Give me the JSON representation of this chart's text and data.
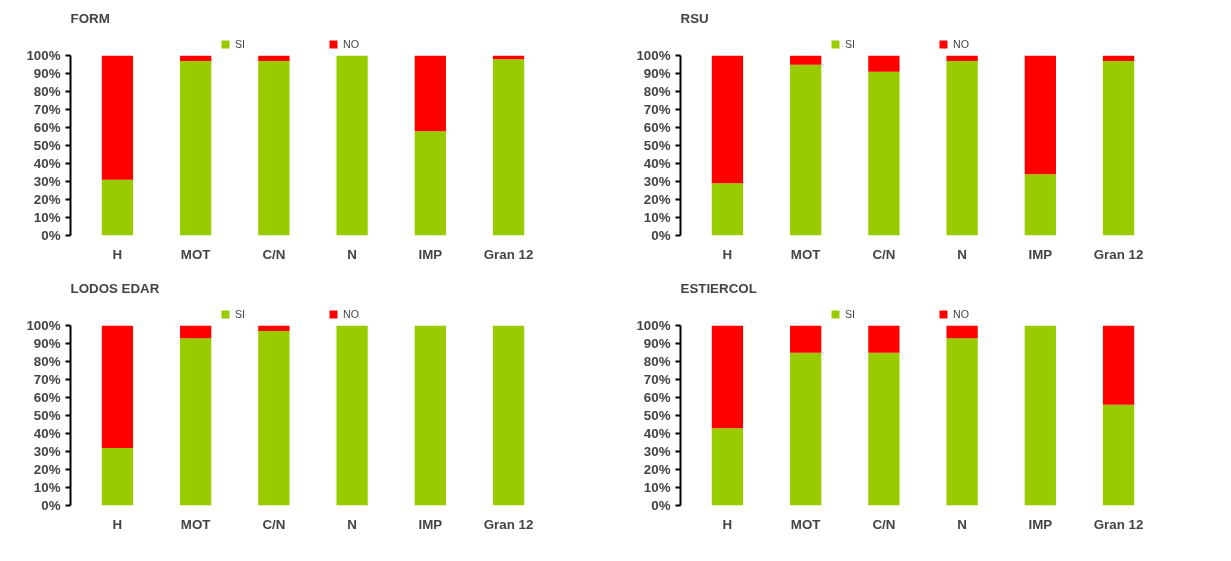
{
  "chart_data": [
    {
      "type": "bar",
      "title": "FORM",
      "categories": [
        "H",
        "MOT",
        "C/N",
        "N",
        "IMP",
        "Gran 12"
      ],
      "stacked": true,
      "legend": "top",
      "grid": false,
      "ylim": [
        0,
        100
      ],
      "yticks": [
        {
          "value": 0,
          "label": "0%"
        },
        {
          "value": 10,
          "label": "10%"
        },
        {
          "value": 20,
          "label": "20%"
        },
        {
          "value": 30,
          "label": "30%"
        },
        {
          "value": 40,
          "label": "40%"
        },
        {
          "value": 50,
          "label": "50%"
        },
        {
          "value": 60,
          "label": "60%"
        },
        {
          "value": 70,
          "label": "70%"
        },
        {
          "value": 80,
          "label": "80%"
        },
        {
          "value": 90,
          "label": "90%"
        },
        {
          "value": 100,
          "label": "100%"
        }
      ],
      "series": [
        {
          "name": "SI",
          "color": "#99cc00",
          "values": [
            31,
            97,
            97,
            100,
            58,
            98
          ]
        },
        {
          "name": "NO",
          "color": "#ff0000",
          "values": [
            69,
            3,
            3,
            0,
            42,
            2
          ]
        }
      ]
    },
    {
      "type": "bar",
      "title": "RSU",
      "categories": [
        "H",
        "MOT",
        "C/N",
        "N",
        "IMP",
        "Gran 12"
      ],
      "stacked": true,
      "legend": "top",
      "grid": false,
      "ylim": [
        0,
        100
      ],
      "yticks": [
        {
          "value": 0,
          "label": "0%"
        },
        {
          "value": 10,
          "label": "10%"
        },
        {
          "value": 20,
          "label": "20%"
        },
        {
          "value": 30,
          "label": "30%"
        },
        {
          "value": 40,
          "label": "40%"
        },
        {
          "value": 50,
          "label": "50%"
        },
        {
          "value": 60,
          "label": "60%"
        },
        {
          "value": 70,
          "label": "70%"
        },
        {
          "value": 80,
          "label": "80%"
        },
        {
          "value": 90,
          "label": "90%"
        },
        {
          "value": 100,
          "label": "100%"
        }
      ],
      "series": [
        {
          "name": "SI",
          "color": "#99cc00",
          "values": [
            29,
            95,
            91,
            97,
            34,
            97
          ]
        },
        {
          "name": "NO",
          "color": "#ff0000",
          "values": [
            71,
            5,
            9,
            3,
            66,
            3
          ]
        }
      ]
    },
    {
      "type": "bar",
      "title": "LODOS EDAR",
      "categories": [
        "H",
        "MOT",
        "C/N",
        "N",
        "IMP",
        "Gran 12"
      ],
      "stacked": true,
      "legend": "top",
      "grid": false,
      "ylim": [
        0,
        100
      ],
      "yticks": [
        {
          "value": 0,
          "label": "0%"
        },
        {
          "value": 10,
          "label": "10%"
        },
        {
          "value": 20,
          "label": "20%"
        },
        {
          "value": 30,
          "label": "30%"
        },
        {
          "value": 40,
          "label": "40%"
        },
        {
          "value": 50,
          "label": "50%"
        },
        {
          "value": 60,
          "label": "60%"
        },
        {
          "value": 70,
          "label": "70%"
        },
        {
          "value": 80,
          "label": "80%"
        },
        {
          "value": 90,
          "label": "90%"
        },
        {
          "value": 100,
          "label": "100%"
        }
      ],
      "series": [
        {
          "name": "SI",
          "color": "#99cc00",
          "values": [
            32,
            93,
            97,
            100,
            100,
            100
          ]
        },
        {
          "name": "NO",
          "color": "#ff0000",
          "values": [
            68,
            7,
            3,
            0,
            0,
            0
          ]
        }
      ]
    },
    {
      "type": "bar",
      "title": "ESTIERCOL",
      "categories": [
        "H",
        "MOT",
        "C/N",
        "N",
        "IMP",
        "Gran 12"
      ],
      "stacked": true,
      "legend": "top",
      "grid": false,
      "ylim": [
        0,
        100
      ],
      "yticks": [
        {
          "value": 0,
          "label": "0%"
        },
        {
          "value": 10,
          "label": "10%"
        },
        {
          "value": 20,
          "label": "20%"
        },
        {
          "value": 30,
          "label": "30%"
        },
        {
          "value": 40,
          "label": "40%"
        },
        {
          "value": 50,
          "label": "50%"
        },
        {
          "value": 60,
          "label": "60%"
        },
        {
          "value": 70,
          "label": "70%"
        },
        {
          "value": 80,
          "label": "80%"
        },
        {
          "value": 90,
          "label": "90%"
        },
        {
          "value": 100,
          "label": "100%"
        }
      ],
      "series": [
        {
          "name": "SI",
          "color": "#99cc00",
          "values": [
            43,
            85,
            85,
            93,
            100,
            56
          ]
        },
        {
          "name": "NO",
          "color": "#ff0000",
          "values": [
            57,
            15,
            15,
            7,
            0,
            44
          ]
        }
      ]
    }
  ]
}
